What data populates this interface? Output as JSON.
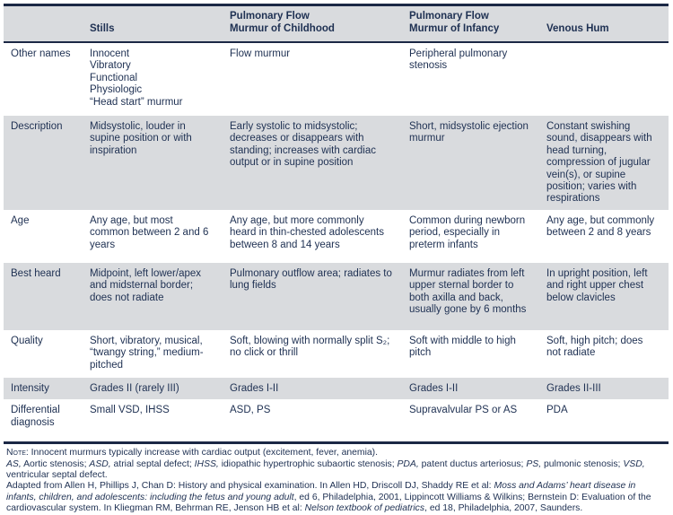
{
  "colors": {
    "text": "#1e3052",
    "stripe": "#d9dbde",
    "rule": "#1b2845",
    "background": "#ffffff"
  },
  "table": {
    "column_headers": [
      "",
      "Stills",
      "Pulmonary Flow\nMurmur of Childhood",
      "Pulmonary Flow\nMurmur of Infancy",
      "Venous Hum"
    ],
    "rows": [
      {
        "label": "Other names",
        "cells": [
          "Innocent\nVibratory\nFunctional\nPhysiologic\n“Head start” murmur",
          "Flow murmur",
          "Peripheral pulmonary stenosis",
          ""
        ]
      },
      {
        "label": "Description",
        "cells": [
          "Midsystolic, louder in supine position or with inspiration",
          "Early systolic to midsystolic; decreases or disappears with standing; increases with cardiac output or in supine position",
          "Short, midsystolic ejection murmur",
          "Constant swishing sound, disappears with head turning, compression of jugular vein(s), or supine position; varies with respirations"
        ]
      },
      {
        "label": "Age",
        "cells": [
          "Any age, but most common between 2 and 6 years",
          "Any age, but more commonly heard in thin-chested adolescents between 8 and 14 years",
          "Common during newborn period, especially in preterm infants",
          "Any age, but commonly between 2 and 8 years"
        ]
      },
      {
        "label": "Best heard",
        "cells": [
          "Midpoint, left lower/apex and midsternal border; does not radiate",
          "Pulmonary outflow area; radiates to lung fields",
          "Murmur radiates from left upper sternal border to both axilla and back, usually gone by 6 months",
          "In upright position, left and right upper chest below clavicles"
        ]
      },
      {
        "label": "Quality",
        "cells": [
          "Short, vibratory, musical, “twangy string,” medium-pitched",
          "Soft, blowing with normally split S₂; no click or thrill",
          "Soft with middle to high pitch",
          "Soft, high pitch; does not radiate"
        ]
      },
      {
        "label": "Intensity",
        "cells": [
          "Grades II (rarely III)",
          "Grades I-II",
          "Grades I-II",
          "Grades II-III"
        ]
      },
      {
        "label": "Differential diagnosis",
        "cells": [
          "Small VSD, IHSS",
          "ASD, PS",
          "Supravalvular PS or AS",
          "PDA"
        ]
      }
    ]
  },
  "footnotes": {
    "note": [
      {
        "t": "Note: ",
        "s": "sc"
      },
      {
        "t": "Innocent murmurs typically increase with cardiac output (excitement, fever, anemia).",
        "s": "n"
      }
    ],
    "abbreviations": [
      {
        "t": "AS,",
        "s": "i"
      },
      {
        "t": " Aortic stenosis; ",
        "s": "n"
      },
      {
        "t": "ASD,",
        "s": "i"
      },
      {
        "t": " atrial septal defect; ",
        "s": "n"
      },
      {
        "t": "IHSS,",
        "s": "i"
      },
      {
        "t": " idiopathic hypertrophic subaortic stenosis; ",
        "s": "n"
      },
      {
        "t": "PDA,",
        "s": "i"
      },
      {
        "t": " patent ductus arteriosus; ",
        "s": "n"
      },
      {
        "t": "PS,",
        "s": "i"
      },
      {
        "t": " pulmonic stenosis; ",
        "s": "n"
      },
      {
        "t": "VSD,",
        "s": "i"
      },
      {
        "t": " ventricular septal defect.",
        "s": "n"
      }
    ],
    "source": [
      {
        "t": "Adapted from Allen H, Phillips J, Chan D: History and physical examination. In Allen HD, Driscoll DJ, Shaddy RE et al: ",
        "s": "n"
      },
      {
        "t": "Moss and Adams’ heart disease in infants, children, and adolescents: including the fetus and young adult",
        "s": "i"
      },
      {
        "t": ", ed 6, Philadelphia, 2001, Lippincott Williams & Wilkins; Bernstein D: Evaluation of the cardiovascular system. In Kliegman RM, Behrman RE, Jenson HB et al: ",
        "s": "n"
      },
      {
        "t": "Nelson textbook of pediatrics",
        "s": "i"
      },
      {
        "t": ", ed 18, Philadelphia, 2007, Saunders.",
        "s": "n"
      }
    ]
  }
}
